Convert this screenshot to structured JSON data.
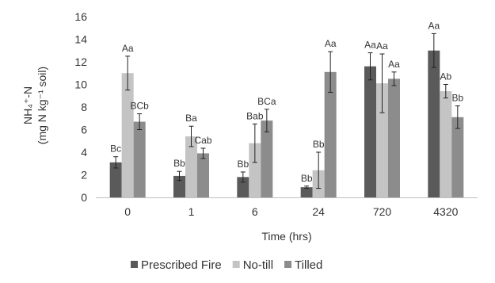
{
  "chart_data": {
    "type": "bar",
    "title": "",
    "xlabel": "Time (hrs)",
    "ylabel_line1": "NH₄⁺-N",
    "ylabel_line2": "(mg N kg⁻¹ soil)",
    "ylim": [
      0,
      16
    ],
    "yticks": [
      0,
      2,
      4,
      6,
      8,
      10,
      12,
      14,
      16
    ],
    "categories": [
      "0",
      "1",
      "6",
      "24",
      "720",
      "4320"
    ],
    "legend_position": "bottom",
    "grid": false,
    "series": [
      {
        "name": "Prescribed Fire",
        "color": "#5a5a5a",
        "values": [
          3.1,
          1.9,
          1.8,
          0.9,
          11.6,
          13.0
        ],
        "errors": [
          0.5,
          0.4,
          0.45,
          0.1,
          1.2,
          1.5
        ],
        "labels": [
          "Bc",
          "Bb",
          "Bb",
          "Bb",
          "Aa",
          "Aa"
        ]
      },
      {
        "name": "No-till",
        "color": "#c4c4c4",
        "values": [
          11.0,
          5.4,
          4.8,
          2.4,
          10.1,
          9.4
        ],
        "errors": [
          1.5,
          0.9,
          1.7,
          1.6,
          2.6,
          0.6
        ],
        "labels": [
          "Aa",
          "Ba",
          "Bab",
          "Bb",
          "Aa",
          "Ab"
        ]
      },
      {
        "name": "Tilled",
        "color": "#8c8c8c",
        "values": [
          6.7,
          3.9,
          6.8,
          11.1,
          10.5,
          7.1
        ],
        "errors": [
          0.7,
          0.45,
          1.0,
          1.8,
          0.6,
          1.0
        ],
        "labels": [
          "BCb",
          "Cab",
          "BCa",
          "Aa",
          "Aa",
          "Bb"
        ]
      }
    ]
  }
}
